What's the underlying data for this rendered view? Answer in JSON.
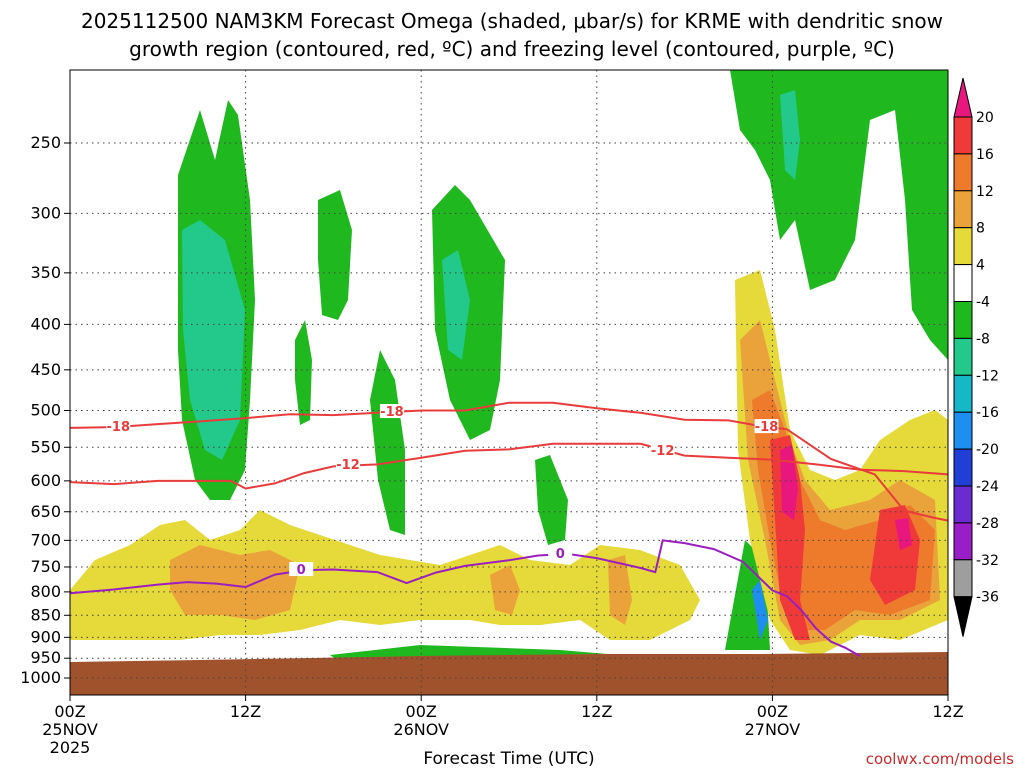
{
  "chart_data": {
    "type": "heatmap",
    "title_line1": "2025112500 NAM3KM Forecast Omega (shaded, μbar/s) for KRME with dendritic snow",
    "title_line2": "growth region (contoured, red, ºC) and freezing level (contoured, purple, ºC)",
    "xlabel": "Forecast Time (UTC)",
    "ylabel": "",
    "credit": "coolwx.com/models",
    "x_range_hours": [
      0,
      60
    ],
    "x_ticks": [
      {
        "hour": 0,
        "label": "00Z",
        "sub1": "25NOV",
        "sub2": "2025"
      },
      {
        "hour": 12,
        "label": "12Z",
        "sub1": "",
        "sub2": ""
      },
      {
        "hour": 24,
        "label": "00Z",
        "sub1": "26NOV",
        "sub2": ""
      },
      {
        "hour": 36,
        "label": "12Z",
        "sub1": "",
        "sub2": ""
      },
      {
        "hour": 48,
        "label": "00Z",
        "sub1": "27NOV",
        "sub2": ""
      },
      {
        "hour": 60,
        "label": "12Z",
        "sub1": "",
        "sub2": ""
      }
    ],
    "y_range_hpa": [
      1050,
      200
    ],
    "y_ticks_hpa": [
      250,
      300,
      350,
      400,
      450,
      500,
      550,
      600,
      650,
      700,
      750,
      800,
      850,
      900,
      950,
      1000
    ],
    "colorbar": {
      "levels": [
        -36,
        -32,
        -28,
        -24,
        -20,
        -16,
        -12,
        -8,
        -4,
        4,
        8,
        12,
        16,
        20
      ],
      "labels": [
        "20",
        "16",
        "12",
        "8",
        "4",
        "-4",
        "-8",
        "-12",
        "-16",
        "-20",
        "-24",
        "-28",
        "-32",
        "-36"
      ],
      "colors": {
        "above_20": "#e8177e",
        "16_20": "#f03a3a",
        "12_16": "#ee7a2c",
        "8_12": "#e9a33a",
        "4_8": "#e6d93a",
        "m4_4": "#ffffff",
        "m8_m4": "#1fb81f",
        "m12_m8": "#22c98a",
        "m16_m12": "#16b8c8",
        "m20_m16": "#1e8ef0",
        "m24_m20": "#1f3fd6",
        "m28_m24": "#6a2bd0",
        "m32_m28": "#9a1ec8",
        "m36_m32": "#9e9e9e",
        "below_m36": "#000000"
      }
    },
    "ground_color": "#a0522d",
    "series": [
      {
        "name": "-18",
        "label": "-18",
        "color": "#e83c3c",
        "points": [
          [
            0,
            523
          ],
          [
            3,
            522
          ],
          [
            6,
            518
          ],
          [
            9,
            514
          ],
          [
            12,
            510
          ],
          [
            15,
            505
          ],
          [
            18,
            506
          ],
          [
            21,
            503
          ],
          [
            24,
            500
          ],
          [
            27,
            500
          ],
          [
            30,
            490
          ],
          [
            33,
            490
          ],
          [
            36,
            497
          ],
          [
            39,
            503
          ],
          [
            42,
            512
          ],
          [
            45,
            513
          ],
          [
            47,
            520
          ],
          [
            49,
            525
          ],
          [
            52,
            567
          ],
          [
            55,
            590
          ],
          [
            57,
            648
          ],
          [
            59,
            660
          ],
          [
            60,
            665
          ]
        ]
      },
      {
        "name": "-12",
        "label": "-12",
        "color": "#e83c3c",
        "points": [
          [
            0,
            602
          ],
          [
            3,
            605
          ],
          [
            6,
            600
          ],
          [
            9,
            600
          ],
          [
            11,
            600
          ],
          [
            12,
            612
          ],
          [
            14,
            604
          ],
          [
            16,
            588
          ],
          [
            18,
            578
          ],
          [
            21,
            575
          ],
          [
            24,
            565
          ],
          [
            27,
            555
          ],
          [
            30,
            553
          ],
          [
            33,
            545
          ],
          [
            36,
            545
          ],
          [
            39,
            545
          ],
          [
            42,
            562
          ],
          [
            45,
            565
          ],
          [
            48,
            568
          ],
          [
            51,
            575
          ],
          [
            54,
            583
          ],
          [
            57,
            585
          ],
          [
            60,
            590
          ]
        ]
      },
      {
        "name": "0",
        "label": "0",
        "color": "#9b1fbf",
        "points": [
          [
            0,
            803
          ],
          [
            3,
            795
          ],
          [
            6,
            785
          ],
          [
            8,
            780
          ],
          [
            10,
            783
          ],
          [
            12,
            790
          ],
          [
            14,
            765
          ],
          [
            16,
            756
          ],
          [
            18,
            755
          ],
          [
            21,
            760
          ],
          [
            23,
            782
          ],
          [
            25,
            761
          ],
          [
            27,
            748
          ],
          [
            30,
            737
          ],
          [
            32,
            728
          ],
          [
            34,
            725
          ],
          [
            36,
            733
          ],
          [
            39,
            752
          ],
          [
            40,
            760
          ],
          [
            40.5,
            700
          ],
          [
            42,
            705
          ],
          [
            44,
            716
          ],
          [
            46,
            740
          ],
          [
            48,
            797
          ],
          [
            49,
            809
          ],
          [
            50,
            840
          ],
          [
            51,
            880
          ],
          [
            52,
            910
          ],
          [
            53,
            925
          ],
          [
            54,
            945
          ]
        ]
      }
    ],
    "omega_regions": [
      {
        "band": "m8_m4",
        "note": "upward motion band near 09Z-12Z 25NOV",
        "hour_range": [
          7.5,
          13
        ],
        "hpa_range": [
          230,
          650
        ]
      },
      {
        "band": "m12_m8",
        "note": "core",
        "hour_range": [
          9,
          12
        ],
        "hpa_range": [
          330,
          560
        ]
      },
      {
        "band": "m8_m4",
        "note": "near 18Z 25NOV",
        "hour_range": [
          17,
          19.5
        ],
        "hpa_range": [
          270,
          460
        ]
      },
      {
        "band": "m8_m4",
        "note": "near 00Z-06Z 26NOV",
        "hour_range": [
          24,
          30
        ],
        "hpa_range": [
          280,
          560
        ]
      },
      {
        "band": "m8_m4",
        "note": "00Z 27NOV upper",
        "hour_range": [
          47.5,
          60
        ],
        "hpa_range": [
          200,
          450
        ]
      },
      {
        "band": "4_8",
        "note": "low-level ascent",
        "hour_range": [
          0,
          60
        ],
        "hpa_range": [
          680,
          930
        ]
      },
      {
        "band": "16_20",
        "note": "strong ascent near 00Z 27NOV",
        "hour_range": [
          47,
          51
        ],
        "hpa_range": [
          450,
          900
        ]
      },
      {
        "band": "above_20",
        "note": "peak",
        "hour_range": [
          48.5,
          49.5
        ],
        "hpa_range": [
          540,
          680
        ]
      }
    ]
  }
}
